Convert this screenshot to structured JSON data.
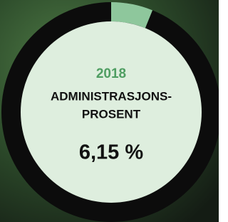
{
  "chart_data": {
    "type": "donut",
    "year": "2018",
    "title_lines": [
      "ADMINISTRASJONS-",
      "PROSENT"
    ],
    "values": [
      6.15
    ],
    "value_labels": [
      "6,15 %"
    ],
    "color": "#8ec79c",
    "year_color": "#4f9e62"
  }
}
